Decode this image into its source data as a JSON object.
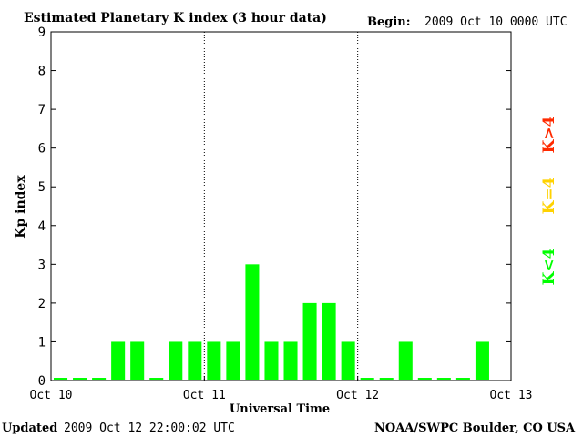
{
  "header": {
    "title": "Estimated Planetary K index (3 hour data)",
    "begin_label": "Begin:",
    "begin_value": "2009 Oct 10 0000 UTC"
  },
  "footer": {
    "updated_label": "Updated",
    "updated_value": "2009 Oct 12 22:00:02 UTC",
    "source": "NOAA/SWPC Boulder, CO USA"
  },
  "legend": {
    "high": {
      "label": "K>4",
      "color": "#ff2a00"
    },
    "mid": {
      "label": "K=4",
      "color": "#ffd200"
    },
    "low": {
      "label": "K<4",
      "color": "#00ff00"
    }
  },
  "chart_data": {
    "type": "bar",
    "title": "Estimated Planetary K index (3 hour data)",
    "xlabel": "Universal Time",
    "ylabel": "Kp index",
    "ylim": [
      0,
      9
    ],
    "yticks": [
      "0",
      "1",
      "2",
      "3",
      "4",
      "5",
      "6",
      "7",
      "8",
      "9"
    ],
    "xticks": [
      "Oct 10",
      "Oct 11",
      "Oct 12",
      "Oct 13"
    ],
    "x_interval_hours": 3,
    "values": [
      0,
      0,
      0,
      1,
      1,
      0,
      1,
      1,
      1,
      1,
      3,
      1,
      1,
      2,
      2,
      1,
      0,
      0,
      1,
      0,
      0,
      0,
      1
    ],
    "bar_color": "#00ff00",
    "day_separators": [
      "Oct 11",
      "Oct 12"
    ],
    "grid": false
  }
}
